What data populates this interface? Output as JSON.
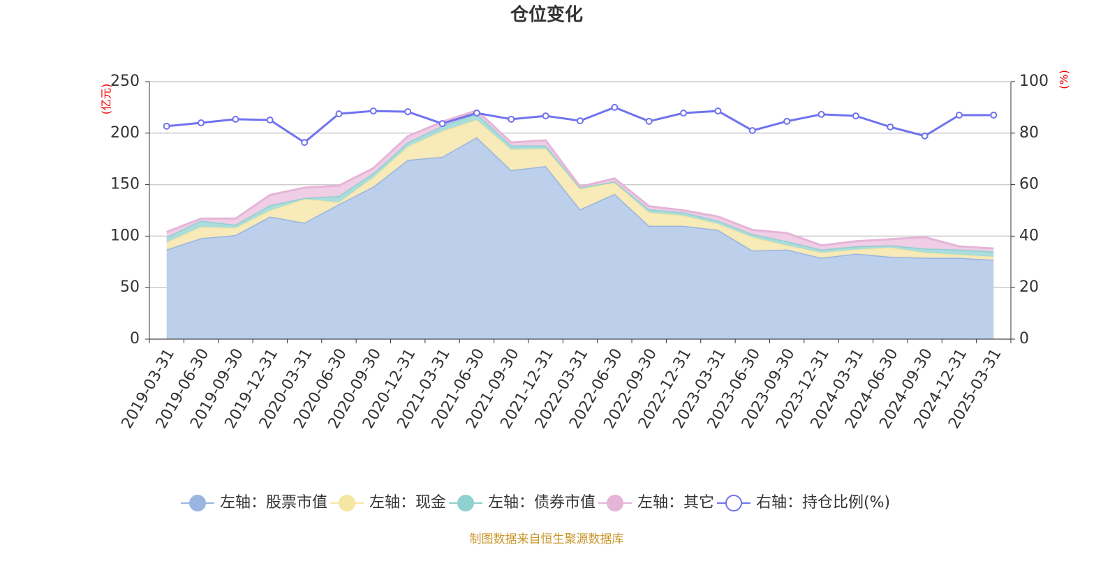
{
  "chart_data": {
    "type": "stacked-area-line",
    "title": "仓位变化",
    "y_label": "(亿元)",
    "y2_label": "(%)",
    "source": "制图数据来自恒生聚源数据库",
    "categories": [
      "2019-03-31",
      "2019-06-30",
      "2019-09-30",
      "2019-12-31",
      "2020-03-31",
      "2020-06-30",
      "2020-09-30",
      "2020-12-31",
      "2021-03-31",
      "2021-06-30",
      "2021-09-30",
      "2021-12-31",
      "2022-03-31",
      "2022-06-30",
      "2022-09-30",
      "2022-12-31",
      "2023-03-31",
      "2023-06-30",
      "2023-09-30",
      "2023-12-31",
      "2024-03-31",
      "2024-06-30",
      "2024-09-30",
      "2024-12-31",
      "2025-03-31"
    ],
    "series": [
      {
        "name": "左轴：股票市值",
        "color": "#9ab5e0",
        "values": [
          87,
          98,
          101,
          119,
          113,
          131,
          148,
          174,
          177,
          196,
          164,
          168,
          126,
          141,
          110,
          110,
          106,
          86,
          87,
          79,
          83,
          80,
          79,
          79,
          77
        ]
      },
      {
        "name": "左轴：现金",
        "color": "#f5e6a3",
        "values": [
          7,
          11,
          7,
          6,
          23,
          2,
          9,
          13,
          25,
          17,
          20,
          17,
          20,
          11,
          13,
          10,
          6,
          13,
          4,
          5,
          4,
          9,
          5,
          3,
          3
        ]
      },
      {
        "name": "左轴：债券市值",
        "color": "#8fd0d0",
        "values": [
          5,
          6,
          3,
          5,
          1,
          6,
          4,
          4,
          5,
          6,
          4,
          3,
          1,
          1,
          3,
          3,
          3,
          3,
          4,
          3,
          3,
          2,
          4,
          5,
          5
        ]
      },
      {
        "name": "左轴：其它",
        "color": "#e5b5d8",
        "values": [
          5,
          2,
          6,
          10,
          10,
          10,
          5,
          6,
          4,
          3,
          3,
          5,
          1,
          3,
          3,
          2,
          4,
          4,
          8,
          4,
          5,
          6,
          11,
          3,
          3
        ]
      },
      {
        "name": "右轴：持仓比例(%)",
        "color": "#7073ee",
        "axis": "y2",
        "values": [
          82.7,
          84.0,
          85.4,
          85.1,
          76.4,
          87.5,
          88.6,
          88.3,
          83.7,
          87.8,
          85.4,
          86.7,
          84.8,
          90.0,
          84.6,
          87.8,
          88.6,
          81.0,
          84.6,
          87.3,
          86.7,
          82.4,
          78.9,
          87.0,
          87.0
        ]
      }
    ],
    "ylim": [
      0,
      250
    ],
    "yticks": [
      0,
      50,
      100,
      150,
      200,
      250
    ],
    "y2lim": [
      0,
      100
    ],
    "y2ticks": [
      0,
      20,
      40,
      60,
      80,
      100
    ],
    "grid": true
  }
}
